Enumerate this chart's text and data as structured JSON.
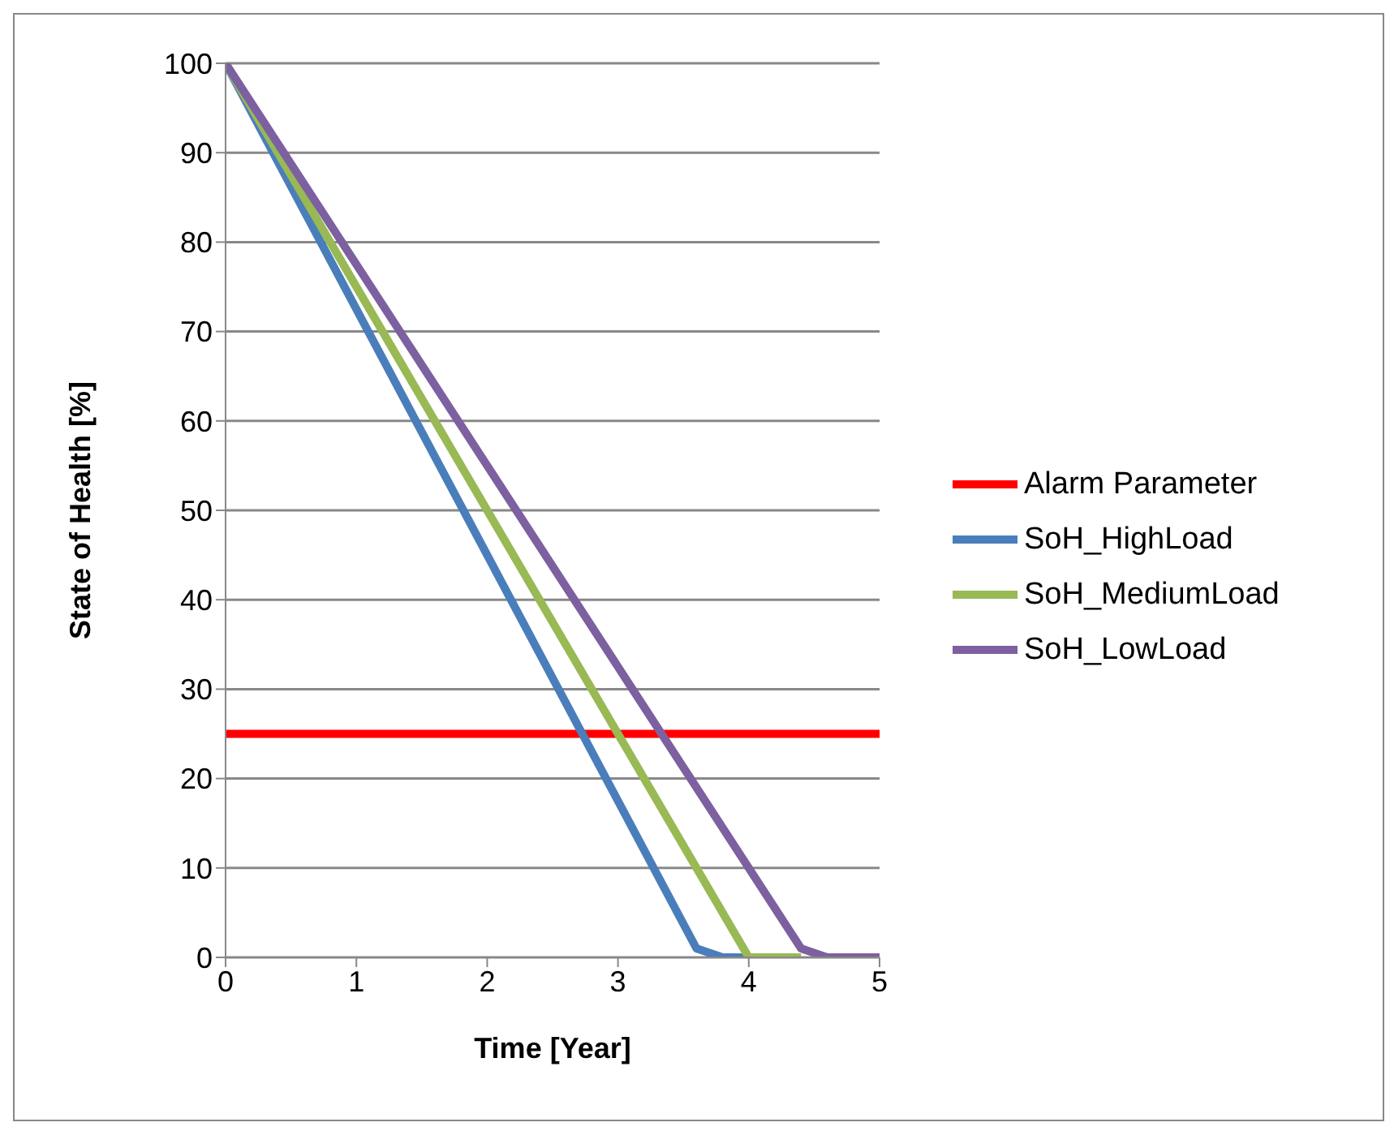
{
  "chart_data": {
    "type": "line",
    "xlabel": "Time [Year]",
    "ylabel": "State of Health [%]",
    "xlim": [
      0,
      5
    ],
    "xticks": [
      0,
      1,
      2,
      3,
      4,
      5
    ],
    "ylim": [
      0,
      100
    ],
    "yticks": [
      0,
      10,
      20,
      30,
      40,
      50,
      60,
      70,
      80,
      90,
      100
    ],
    "grid": "y",
    "legend": "right",
    "marker": "none",
    "line_style": "solid",
    "series": [
      {
        "name": "Alarm Parameter",
        "color": "#ff0000",
        "x": [
          0,
          5
        ],
        "values": [
          25,
          25
        ]
      },
      {
        "name": "SoH_HighLoad",
        "color": "#4a7ebb",
        "x": [
          0,
          3.6,
          3.8,
          4
        ],
        "values": [
          100,
          1,
          0,
          0
        ]
      },
      {
        "name": "SoH_MediumLoad",
        "color": "#98b954",
        "x": [
          0,
          4,
          4.4
        ],
        "values": [
          100,
          0,
          0
        ]
      },
      {
        "name": "SoH_LowLoad",
        "color": "#7d60a0",
        "x": [
          0,
          4.4,
          4.6,
          5
        ],
        "values": [
          100,
          1,
          0,
          0
        ]
      }
    ]
  }
}
